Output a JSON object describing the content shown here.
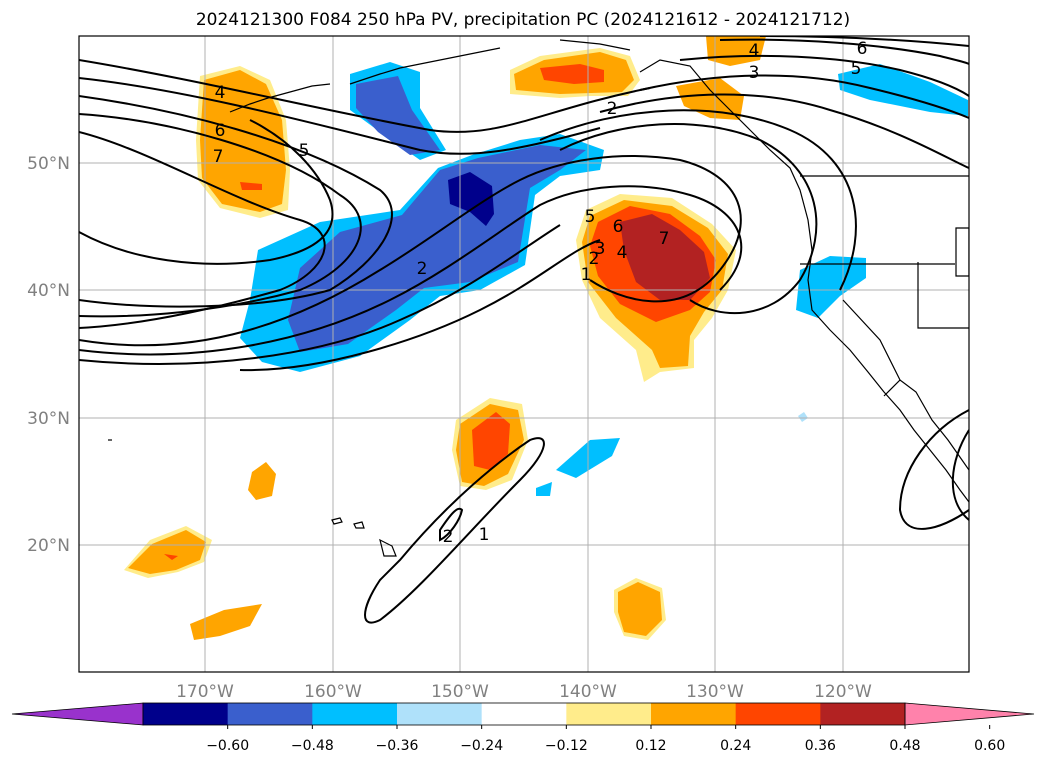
{
  "title": "2024121300 F084 250 hPa PV, precipitation PC (2024121612 - 2024121712)",
  "lon_labels": [
    "170°W",
    "160°W",
    "150°W",
    "140°W",
    "130°W",
    "120°W"
  ],
  "lat_labels": [
    "50°N",
    "40°N",
    "30°N",
    "20°N"
  ],
  "colorbar": {
    "ticks": [
      "−0.60",
      "−0.48",
      "−0.36",
      "−0.24",
      "−0.12",
      "0.12",
      "0.24",
      "0.36",
      "0.48",
      "0.60"
    ],
    "colors": [
      "#9932cc",
      "#00008b",
      "#3a5fcd",
      "#00bfff",
      "#afe1fa",
      "#ffffff",
      "#ffec8b",
      "#ffa500",
      "#ff4500",
      "#b22222",
      "#ff82ab"
    ]
  },
  "contour_labels": [
    "4",
    "6",
    "7",
    "5",
    "2",
    "1",
    "2",
    "3",
    "5",
    "6",
    "7",
    "1",
    "2",
    "4",
    "3",
    "2",
    "6",
    "5",
    "4"
  ],
  "colors": {
    "contour": "#000000",
    "grid": "#b0b0b0",
    "coast": "#000000"
  }
}
